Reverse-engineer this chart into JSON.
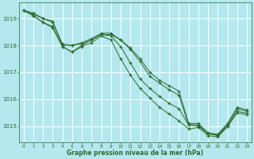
{
  "background_color": "#b3e8ee",
  "grid_color": "#ffffff",
  "line_color": "#2d6a2d",
  "marker_color": "#2d6a2d",
  "xlabel": "Graphe pression niveau de la mer (hPa)",
  "xlabel_color": "#2d6a2d",
  "tick_color": "#2d6a2d",
  "ylim": [
    1014.4,
    1019.6
  ],
  "xlim": [
    -0.5,
    23.5
  ],
  "yticks": [
    1015,
    1016,
    1017,
    1018,
    1019
  ],
  "xticks": [
    0,
    1,
    2,
    3,
    4,
    5,
    6,
    7,
    8,
    9,
    10,
    11,
    12,
    13,
    14,
    15,
    16,
    17,
    18,
    19,
    20,
    21,
    22,
    23
  ],
  "series": [
    [
      1019.3,
      1019.2,
      1019.0,
      1018.9,
      1018.0,
      1018.0,
      1018.05,
      1018.2,
      1018.4,
      1018.4,
      1018.2,
      1017.85,
      1017.4,
      1016.85,
      1016.6,
      1016.35,
      1016.15,
      1015.05,
      1015.05,
      1014.72,
      1014.68,
      1015.05,
      1015.65,
      1015.55
    ],
    [
      1019.3,
      1019.1,
      1018.85,
      1018.7,
      1017.95,
      1017.75,
      1018.0,
      1018.2,
      1018.4,
      1018.35,
      1017.95,
      1017.35,
      1016.75,
      1016.4,
      1016.1,
      1015.85,
      1015.65,
      1015.05,
      1015.0,
      1014.72,
      1014.65,
      1015.0,
      1015.55,
      1015.48
    ],
    [
      1019.3,
      1019.1,
      1018.85,
      1018.65,
      1017.95,
      1017.75,
      1017.95,
      1018.1,
      1018.35,
      1018.2,
      1017.5,
      1016.9,
      1016.4,
      1016.05,
      1015.7,
      1015.45,
      1015.2,
      1014.9,
      1014.95,
      1014.65,
      1014.6,
      1014.98,
      1015.5,
      1015.42
    ],
    [
      1019.3,
      1019.15,
      1019.0,
      1018.85,
      1018.05,
      1018.0,
      1018.1,
      1018.25,
      1018.45,
      1018.45,
      1018.2,
      1017.9,
      1017.5,
      1017.0,
      1016.7,
      1016.5,
      1016.3,
      1015.1,
      1015.1,
      1014.75,
      1014.7,
      1015.1,
      1015.7,
      1015.6
    ]
  ]
}
